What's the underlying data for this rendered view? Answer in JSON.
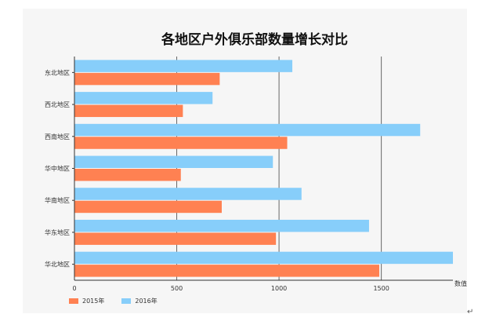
{
  "chart_data": {
    "type": "bar",
    "orientation": "horizontal",
    "title": "各地区户外俱乐部数量增长对比",
    "categories": [
      "华北地区",
      "华东地区",
      "华南地区",
      "华中地区",
      "西南地区",
      "西北地区",
      "东北地区"
    ],
    "series": [
      {
        "name": "2015年",
        "color": "#ff8152",
        "values": [
          1490,
          985,
          720,
          520,
          1040,
          530,
          710
        ]
      },
      {
        "name": "2016年",
        "color": "#87cefa",
        "values": [
          1850,
          1440,
          1110,
          970,
          1690,
          675,
          1065
        ]
      }
    ],
    "xlabel": "数值",
    "ylabel": "",
    "xlim": [
      0,
      1850
    ],
    "xticks": [
      "0",
      "500",
      "1000",
      "1500"
    ],
    "xtick_values": [
      0,
      500,
      1000,
      1500
    ],
    "gridlines": true,
    "legend_position": "bottom-left"
  },
  "return_mark": "↵"
}
